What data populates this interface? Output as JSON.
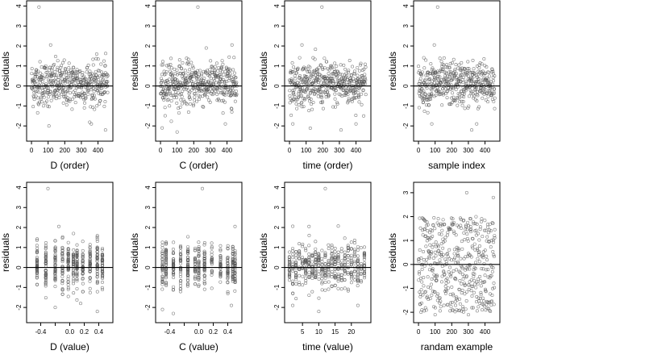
{
  "colors": {
    "points": "#555555",
    "frame": "#000000",
    "background": "#ffffff"
  },
  "chart_data": [
    {
      "type": "scatter",
      "xlabel": "D (order)",
      "ylabel": "residuals",
      "xlim": [
        -10,
        470
      ],
      "ylim": [
        -2.6,
        4.1
      ],
      "xticks": [
        0,
        100,
        200,
        300,
        400
      ],
      "xtick_labels": [
        "0",
        "100",
        "200",
        "300",
        "400"
      ],
      "yticks": [
        -2,
        -1,
        0,
        1,
        2,
        3,
        4
      ],
      "ytick_labels": [
        "-2",
        "-1",
        "0",
        "1",
        "2",
        "3",
        "4"
      ],
      "hline": 0,
      "pattern": "index",
      "outliers": [
        [
          45,
          3.95
        ],
        [
          115,
          2.05
        ],
        [
          105,
          -2.0
        ],
        [
          360,
          -1.9
        ],
        [
          445,
          -2.2
        ]
      ]
    },
    {
      "type": "scatter",
      "xlabel": "C (order)",
      "ylabel": "residuals",
      "xlim": [
        -10,
        470
      ],
      "ylim": [
        -2.6,
        4.1
      ],
      "xticks": [
        0,
        100,
        200,
        300,
        400
      ],
      "xtick_labels": [
        "0",
        "100",
        "200",
        "300",
        "400"
      ],
      "yticks": [
        -2,
        -1,
        0,
        1,
        2,
        3,
        4
      ],
      "ytick_labels": [
        "-2",
        "-1",
        "0",
        "1",
        "2",
        "3",
        "4"
      ],
      "hline": 0,
      "pattern": "index",
      "outliers": [
        [
          225,
          3.95
        ],
        [
          430,
          2.05
        ],
        [
          10,
          -2.1
        ],
        [
          100,
          -2.3
        ],
        [
          390,
          -1.9
        ]
      ]
    },
    {
      "type": "scatter",
      "xlabel": "time (order)",
      "ylabel": "residuals",
      "xlim": [
        -10,
        470
      ],
      "ylim": [
        -2.6,
        4.1
      ],
      "xticks": [
        0,
        100,
        200,
        300,
        400
      ],
      "xtick_labels": [
        "0",
        "100",
        "200",
        "300",
        "400"
      ],
      "yticks": [
        -2,
        -1,
        0,
        1,
        2,
        3,
        4
      ],
      "ytick_labels": [
        "-2",
        "-1",
        "0",
        "1",
        "2",
        "3",
        "4"
      ],
      "hline": 0,
      "pattern": "index",
      "outliers": [
        [
          195,
          3.95
        ],
        [
          75,
          2.05
        ],
        [
          20,
          -1.9
        ],
        [
          310,
          -2.2
        ],
        [
          400,
          -1.9
        ]
      ]
    },
    {
      "type": "scatter",
      "xlabel": "sample index",
      "ylabel": "residuals",
      "xlim": [
        -10,
        470
      ],
      "ylim": [
        -2.6,
        4.1
      ],
      "xticks": [
        0,
        100,
        200,
        300,
        400
      ],
      "xtick_labels": [
        "0",
        "100",
        "200",
        "300",
        "400"
      ],
      "yticks": [
        -2,
        -1,
        0,
        1,
        2,
        3,
        4
      ],
      "ytick_labels": [
        "-2",
        "-1",
        "0",
        "1",
        "2",
        "3",
        "4"
      ],
      "hline": 0,
      "pattern": "index",
      "outliers": [
        [
          115,
          3.95
        ],
        [
          95,
          2.05
        ],
        [
          80,
          -1.9
        ],
        [
          320,
          -2.2
        ],
        [
          350,
          -1.9
        ]
      ]
    },
    {
      "type": "scatter",
      "xlabel": "D (value)",
      "ylabel": "residuals",
      "xlim": [
        -0.55,
        0.55
      ],
      "ylim": [
        -2.6,
        4.1
      ],
      "xticks": [
        -0.4,
        -0.2,
        0.0,
        0.2,
        0.4
      ],
      "xtick_labels": [
        "-0.4",
        "",
        "0.0",
        "0.2",
        "0.4"
      ],
      "yticks": [
        -2,
        -1,
        0,
        1,
        2,
        3,
        4
      ],
      "ytick_labels": [
        "-2",
        "-1",
        "0",
        "1",
        "2",
        "3",
        "4"
      ],
      "hline": 0,
      "pattern": "columns",
      "columns": [
        -0.45,
        -0.33,
        -0.2,
        -0.1,
        -0.02,
        0.05,
        0.1,
        0.18,
        0.28,
        0.38,
        0.45
      ],
      "outliers": [
        [
          -0.3,
          3.95
        ],
        [
          -0.15,
          2.05
        ],
        [
          -0.2,
          -2.0
        ],
        [
          0.38,
          -2.2
        ],
        [
          0.15,
          -1.8
        ]
      ]
    },
    {
      "type": "scatter",
      "xlabel": "C (value)",
      "ylabel": "residuals",
      "xlim": [
        -0.55,
        0.55
      ],
      "ylim": [
        -2.6,
        4.1
      ],
      "xticks": [
        -0.4,
        -0.2,
        0.0,
        0.2,
        0.4
      ],
      "xtick_labels": [
        "-0.4",
        "",
        "0.0",
        "0.2",
        "0.4"
      ],
      "yticks": [
        -2,
        -1,
        0,
        1,
        2,
        3,
        4
      ],
      "ytick_labels": [
        "-2",
        "-1",
        "0",
        "1",
        "2",
        "3",
        "4"
      ],
      "hline": 0,
      "pattern": "columns",
      "columns": [
        -0.5,
        -0.45,
        -0.35,
        -0.25,
        -0.15,
        -0.05,
        0.0,
        0.08,
        0.18,
        0.3,
        0.4,
        0.47,
        0.5
      ],
      "outliers": [
        [
          0.05,
          3.95
        ],
        [
          0.5,
          2.05
        ],
        [
          -0.5,
          -2.1
        ],
        [
          -0.35,
          -2.3
        ],
        [
          0.45,
          -1.9
        ]
      ]
    },
    {
      "type": "scatter",
      "xlabel": "time (value)",
      "ylabel": "residuals",
      "xlim": [
        0.5,
        25
      ],
      "ylim": [
        -2.6,
        4.1
      ],
      "xticks": [
        5,
        10,
        15,
        20
      ],
      "xtick_labels": [
        "5",
        "10",
        "15",
        "20"
      ],
      "yticks": [
        -2,
        -1,
        0,
        1,
        2,
        3,
        4
      ],
      "ytick_labels": [
        "-2",
        "-1",
        "0",
        "1",
        "2",
        "3",
        "4"
      ],
      "hline": 0,
      "pattern": "columns",
      "columns": [
        1,
        2,
        3,
        4,
        5,
        6,
        7,
        8,
        9,
        10,
        11,
        12,
        13,
        14,
        15,
        16,
        17,
        18,
        19,
        20,
        21,
        22,
        23,
        24
      ],
      "outliers": [
        [
          12,
          3.95
        ],
        [
          7,
          2.05
        ],
        [
          2,
          -1.9
        ],
        [
          10,
          -2.2
        ],
        [
          22,
          -1.9
        ]
      ]
    },
    {
      "type": "scatter",
      "xlabel": "randam example",
      "ylabel": "residuals",
      "xlim": [
        -10,
        470
      ],
      "ylim": [
        -2.3,
        3.3
      ],
      "xticks": [
        0,
        100,
        200,
        300,
        400
      ],
      "xtick_labels": [
        "0",
        "100",
        "200",
        "300",
        "400"
      ],
      "yticks": [
        -2,
        -1,
        0,
        1,
        2,
        3
      ],
      "ytick_labels": [
        "-2",
        "-1",
        "0",
        "1",
        "2",
        "3"
      ],
      "hline": 0,
      "pattern": "uniform",
      "outliers": [
        [
          290,
          3.0
        ],
        [
          450,
          2.8
        ],
        [
          100,
          -2.1
        ],
        [
          300,
          -2.1
        ]
      ]
    }
  ]
}
